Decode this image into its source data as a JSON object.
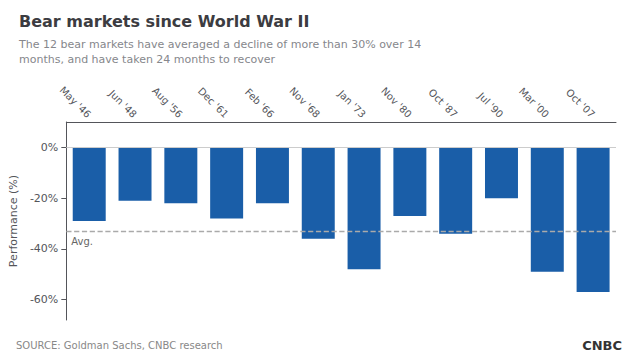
{
  "chart_data": {
    "type": "bar",
    "title": "Bear markets since World War II",
    "subtitle": "The 12 bear markets have averaged a decline of more than 30% over 14\nmonths, and have taken 24 months to recover",
    "categories": [
      "May '46",
      "Jun '48",
      "Aug '56",
      "Dec '61",
      "Feb '66",
      "Nov '68",
      "Jan '73",
      "Nov '80",
      "Oct '87",
      "Jul '90",
      "Mar '00",
      "Oct '07"
    ],
    "values": [
      -29,
      -21,
      -22,
      -28,
      -22,
      -36,
      -48,
      -27,
      -34,
      -20,
      -49,
      -57
    ],
    "color": "#1a5ea8",
    "ylabel": "Performance (%)",
    "ylim": [
      -68,
      10
    ],
    "yticks": [
      {
        "value": 0,
        "label": "0%"
      },
      {
        "value": -20,
        "label": "-20%"
      },
      {
        "value": -40,
        "label": "-40%"
      },
      {
        "value": -60,
        "label": "-60%"
      }
    ],
    "grid": false,
    "annotations": [
      {
        "type": "hline",
        "y": -33,
        "text": "Avg."
      }
    ],
    "source": "SOURCE: Goldman Sachs, CNBC research",
    "logo": "CNBC"
  }
}
